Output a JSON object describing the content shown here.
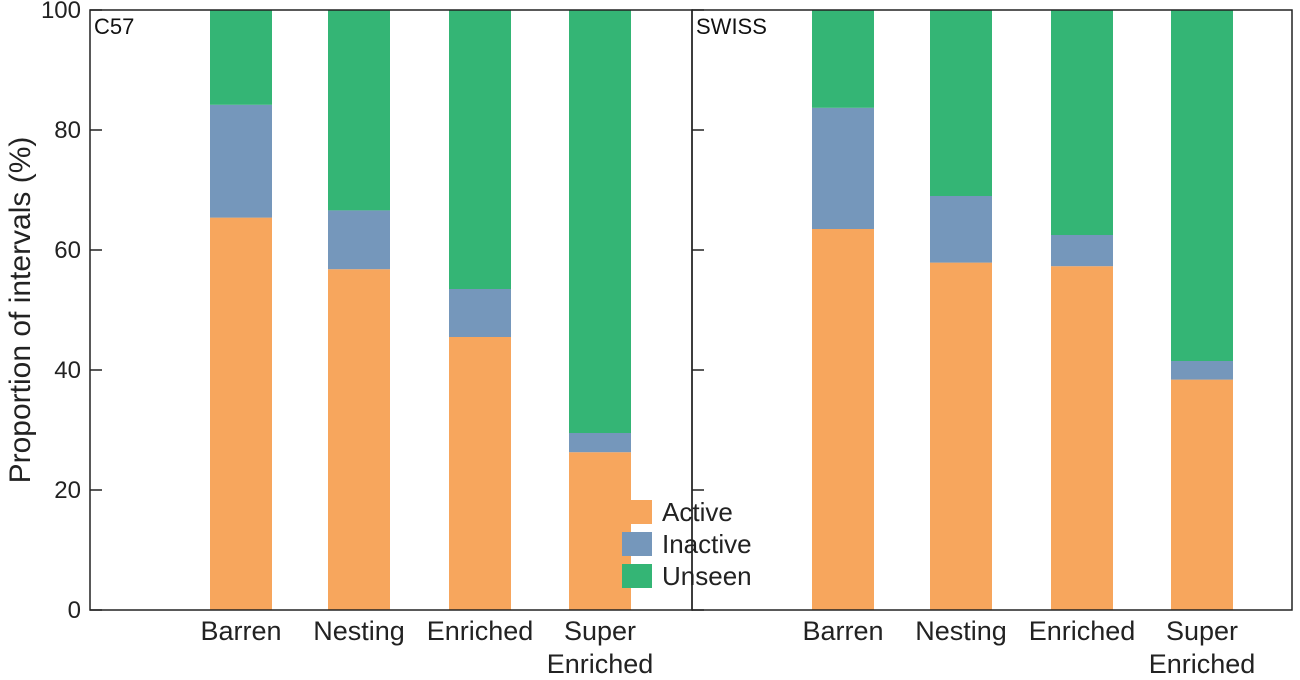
{
  "chart_data": {
    "type": "bar",
    "stacked": true,
    "ylabel": "Proportion of intervals (%)",
    "ylim": [
      0,
      100
    ],
    "yticks": [
      "0",
      "20",
      "40",
      "60",
      "80",
      "100"
    ],
    "category_lines": [
      [
        "Barren"
      ],
      [
        "Nesting"
      ],
      [
        "Enriched"
      ],
      [
        "Super",
        "Enriched"
      ]
    ],
    "legend": {
      "placement": "bottom-center",
      "entries": [
        {
          "name": "Active",
          "color": "#F7A65D"
        },
        {
          "name": "Inactive",
          "color": "#7597BB"
        },
        {
          "name": "Unseen",
          "color": "#34B575"
        }
      ]
    },
    "panels": [
      {
        "label": "C57",
        "series": [
          {
            "name": "Active",
            "values": [
              65.4,
              56.8,
              45.5,
              26.3
            ]
          },
          {
            "name": "Inactive",
            "values": [
              18.8,
              9.8,
              8.0,
              3.2
            ]
          },
          {
            "name": "Unseen",
            "values": [
              15.8,
              33.4,
              46.5,
              70.5
            ]
          }
        ]
      },
      {
        "label": "SWISS",
        "series": [
          {
            "name": "Active",
            "values": [
              63.5,
              57.9,
              57.3,
              38.4
            ]
          },
          {
            "name": "Inactive",
            "values": [
              20.2,
              11.1,
              5.2,
              3.1
            ]
          },
          {
            "name": "Unseen",
            "values": [
              16.3,
              31.0,
              37.5,
              58.5
            ]
          }
        ]
      }
    ]
  }
}
